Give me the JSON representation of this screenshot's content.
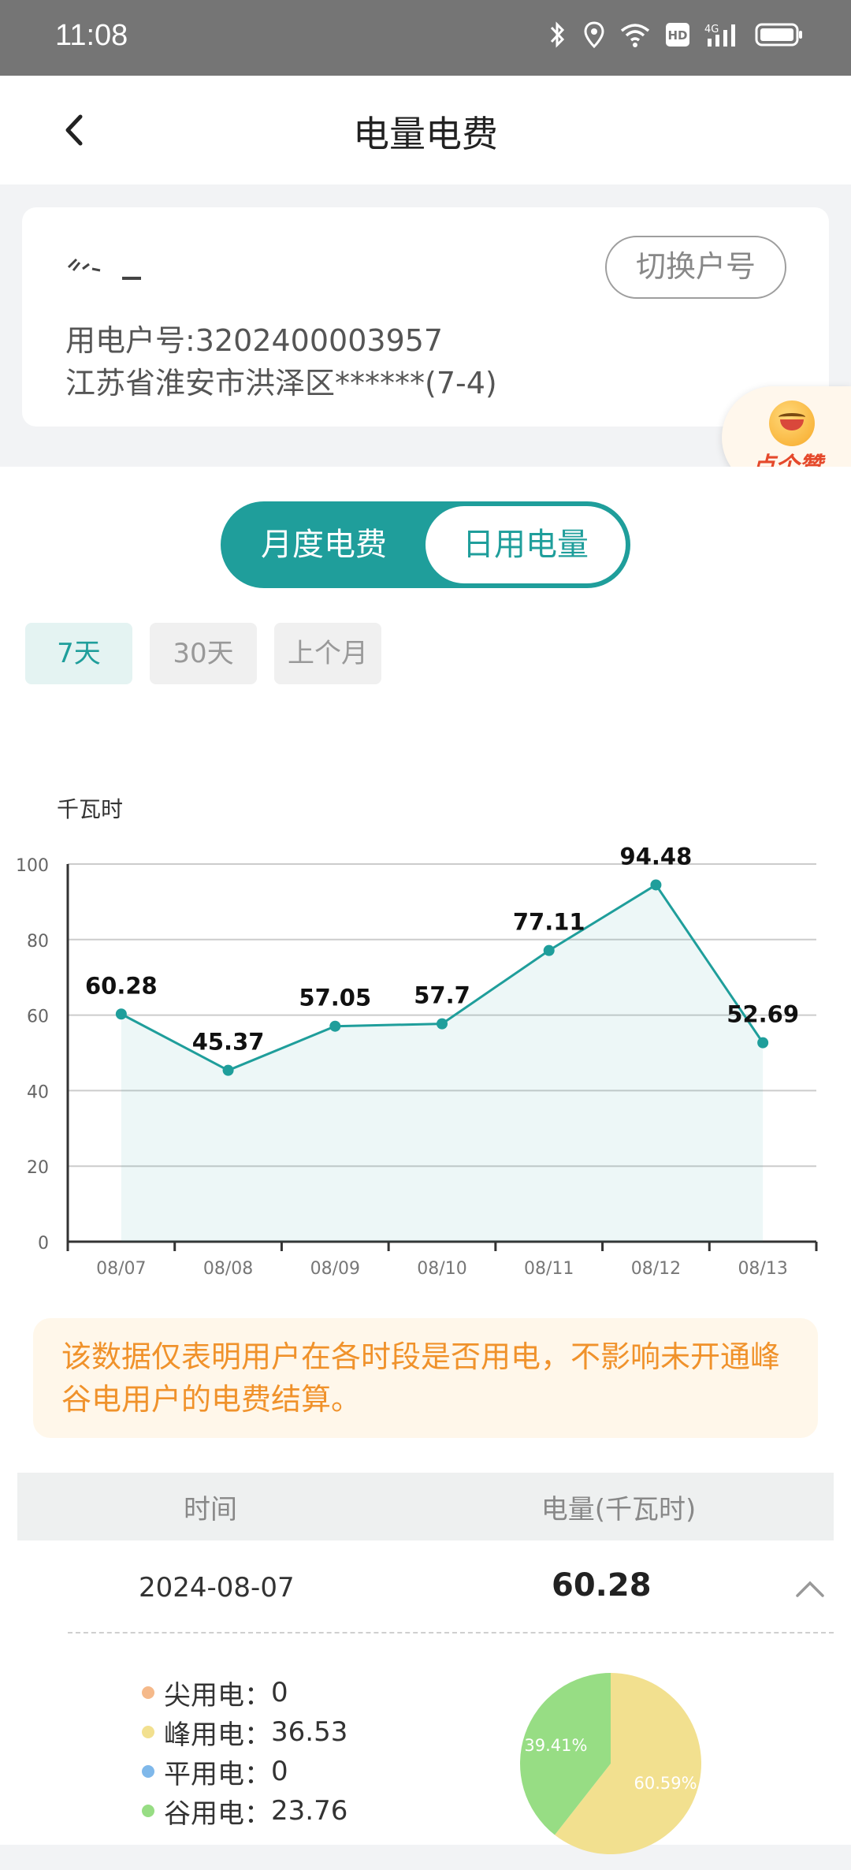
{
  "status_bar": {
    "time": "11:08",
    "battery_label": "battery-full"
  },
  "header": {
    "title": "电量电费"
  },
  "account": {
    "switch_label": "切换户号",
    "account_number": "用电户号:3202400003957",
    "address": "江苏省淮安市洪泽区******(7-4)"
  },
  "like_badge": {
    "label": "点个赞"
  },
  "segment": {
    "monthly": "月度电费",
    "daily": "日用电量",
    "selected": "daily"
  },
  "range_tabs": [
    {
      "label": "7天",
      "active": true
    },
    {
      "label": "30天",
      "active": false
    },
    {
      "label": "上个月",
      "active": false
    }
  ],
  "chart_data": {
    "type": "area",
    "ylabel": "千瓦时",
    "categories": [
      "08/07",
      "08/08",
      "08/09",
      "08/10",
      "08/11",
      "08/12",
      "08/13"
    ],
    "values": [
      60.28,
      45.37,
      57.05,
      57.7,
      77.11,
      94.48,
      52.69
    ],
    "data_labels": [
      "60.28",
      "45.37",
      "57.05",
      "57.7",
      "77.11",
      "94.48",
      "52.69"
    ],
    "yticks": [
      0,
      20,
      40,
      60,
      80,
      100
    ],
    "ylim": [
      0,
      100
    ],
    "grid": true,
    "color": "#1f9e9b"
  },
  "notice": {
    "text": "该数据仅表明用户在各时段是否用电，不影响未开通峰谷电用户的电费结算。"
  },
  "table": {
    "headers": [
      "时间",
      "电量(千瓦时)"
    ],
    "rows": [
      {
        "date": "2024-08-07",
        "value": "60.28"
      }
    ]
  },
  "breakdown": {
    "items": [
      {
        "label": "尖用电：",
        "value": "0",
        "color": "#f5b98a"
      },
      {
        "label": "峰用电：",
        "value": "36.53",
        "color": "#f2e08f"
      },
      {
        "label": "平用电：",
        "value": "0",
        "color": "#7fb8ea"
      },
      {
        "label": "谷用电：",
        "value": "23.76",
        "color": "#97dd84"
      }
    ],
    "pie": [
      {
        "name": "峰用电",
        "percent": 60.59,
        "label": "60.59%",
        "color": "#f2e08f"
      },
      {
        "name": "谷用电",
        "percent": 39.41,
        "label": "39.41%",
        "color": "#97dd84"
      }
    ]
  }
}
